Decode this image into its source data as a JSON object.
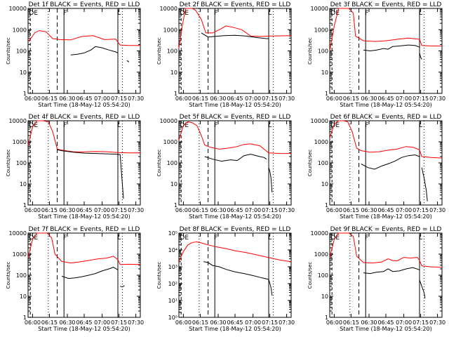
{
  "figure": {
    "background": "#ffffff",
    "axis_color": "#000000",
    "events_color": "#000000",
    "lld_color": "#ff0000"
  },
  "chart_data": [
    {
      "type": "line",
      "title": "Det 1f BLACK = Events, RED = LLD",
      "xlabel": "Start Time (18-May-12 05:54:20)",
      "ylabel": "Counts/sec",
      "y_scale": "log",
      "ylim": [
        1,
        10000
      ],
      "y_ticks": [
        1,
        10,
        100,
        1000,
        10000
      ],
      "y_tick_labels": [
        "1",
        "10",
        "100",
        "1000",
        "10000"
      ],
      "x_ticks": [
        "06:00",
        "06:15",
        "06:30",
        "06:45",
        "07:00",
        "07:15",
        "07:30"
      ],
      "markers": [
        "D",
        "E",
        "F",
        "L"
      ],
      "series": [
        {
          "key": "lld",
          "color": "#ff0000",
          "x": [
            0,
            0.03,
            0.06,
            0.1,
            0.16,
            0.22,
            0.28,
            0.38,
            0.48,
            0.58,
            0.68,
            0.78,
            0.82,
            0.9,
            1.0
          ],
          "y": [
            280,
            420,
            720,
            900,
            800,
            380,
            340,
            330,
            480,
            520,
            340,
            360,
            190,
            180,
            180
          ]
        },
        {
          "key": "events",
          "color": "#000000",
          "x": [
            0.38,
            0.44,
            0.5,
            0.56,
            0.6,
            0.66,
            0.72,
            0.78,
            0.8
          ],
          "y": [
            65,
            70,
            80,
            110,
            160,
            140,
            110,
            90,
            80
          ]
        },
        {
          "key": "events_tail",
          "color": "#000000",
          "x": [
            0.88,
            0.9
          ],
          "y": [
            35,
            30
          ]
        }
      ]
    },
    {
      "type": "line",
      "title": "Det 2f BLACK = Events, RED = LLD",
      "xlabel": "Start Time (18-May-12 05:54:20)",
      "ylabel": "Counts/sec",
      "y_scale": "log",
      "ylim": [
        1,
        10000
      ],
      "y_ticks": [
        1,
        10,
        100,
        1000,
        10000
      ],
      "y_tick_labels": [
        "1",
        "10",
        "100",
        "1000",
        "10000"
      ],
      "x_ticks": [
        "06:00",
        "06:15",
        "06:30",
        "06:45",
        "07:00",
        "07:15",
        "07:30"
      ],
      "markers": [
        "D",
        "E",
        "F",
        "L"
      ],
      "series": [
        {
          "key": "lld",
          "color": "#ff0000",
          "x": [
            0,
            0.03,
            0.06,
            0.09,
            0.12,
            0.15,
            0.2,
            0.24,
            0.3,
            0.36,
            0.42,
            0.48,
            0.56,
            0.64,
            0.72,
            0.8,
            1.0
          ],
          "y": [
            130,
            1500,
            10000,
            10000,
            10000,
            8000,
            3000,
            700,
            700,
            1000,
            1500,
            1300,
            1000,
            500,
            480,
            500,
            520
          ]
        },
        {
          "key": "events",
          "color": "#000000",
          "x": [
            0.2,
            0.26,
            0.32,
            0.4,
            0.5,
            0.6,
            0.7,
            0.78,
            0.8
          ],
          "y": [
            700,
            450,
            480,
            520,
            540,
            500,
            420,
            380,
            380
          ]
        }
      ]
    },
    {
      "type": "line",
      "title": "Det 3f BLACK = Events, RED = LLD",
      "xlabel": "Start Time (18-May-12 05:54:20)",
      "ylabel": "Counts/sec",
      "y_scale": "log",
      "ylim": [
        1,
        10000
      ],
      "y_ticks": [
        1,
        10,
        100,
        1000,
        10000
      ],
      "y_tick_labels": [
        "1",
        "10",
        "100",
        "1000",
        "10000"
      ],
      "x_ticks": [
        "06:00",
        "06:15",
        "06:30",
        "06:45",
        "07:00",
        "07:15",
        "07:30"
      ],
      "markers": [
        "D",
        "E",
        "F",
        "L"
      ],
      "series": [
        {
          "key": "lld",
          "color": "#ff0000",
          "x": [
            0,
            0.04,
            0.08,
            0.12,
            0.17,
            0.21,
            0.23,
            0.3,
            0.4,
            0.5,
            0.6,
            0.7,
            0.8,
            0.82,
            0.9,
            1.0
          ],
          "y": [
            100,
            1500,
            10000,
            10000,
            10000,
            6000,
            500,
            300,
            280,
            300,
            350,
            400,
            350,
            180,
            170,
            170
          ]
        },
        {
          "key": "events",
          "color": "#000000",
          "x": [
            0.3,
            0.36,
            0.42,
            0.48,
            0.52,
            0.56,
            0.62,
            0.7,
            0.76,
            0.8
          ],
          "y": [
            110,
            100,
            110,
            130,
            120,
            160,
            170,
            190,
            180,
            150
          ]
        },
        {
          "key": "events_tail",
          "color": "#000000",
          "x": [
            0.8,
            0.81,
            0.82
          ],
          "y": [
            80,
            50,
            40
          ]
        }
      ]
    },
    {
      "type": "line",
      "title": "Det 4f BLACK = Events, RED = LLD",
      "xlabel": "Start Time (18-May-12 05:54:20)",
      "ylabel": "Counts/sec",
      "y_scale": "log",
      "ylim": [
        1,
        10000
      ],
      "y_ticks": [
        1,
        10,
        100,
        1000,
        10000
      ],
      "y_tick_labels": [
        "1",
        "10",
        "100",
        "1000",
        "10000"
      ],
      "x_ticks": [
        "06:00",
        "06:15",
        "06:30",
        "06:45",
        "07:00",
        "07:15",
        "07:30"
      ],
      "markers": [
        "D",
        "E",
        "F",
        "L"
      ],
      "series": [
        {
          "key": "lld",
          "color": "#ff0000",
          "x": [
            0,
            0.04,
            0.08,
            0.13,
            0.18,
            0.22,
            0.26,
            0.3,
            0.4,
            0.5,
            0.6,
            0.7,
            0.8,
            0.9,
            1.0
          ],
          "y": [
            700,
            5000,
            10000,
            10000,
            9000,
            3000,
            450,
            400,
            340,
            330,
            350,
            340,
            310,
            300,
            300
          ]
        },
        {
          "key": "events",
          "color": "#000000",
          "x": [
            0.26,
            0.3,
            0.4,
            0.5,
            0.6,
            0.7,
            0.78,
            0.82,
            0.84,
            0.85
          ],
          "y": [
            420,
            380,
            320,
            290,
            280,
            270,
            260,
            250,
            10,
            2
          ]
        }
      ]
    },
    {
      "type": "line",
      "title": "Det 5f BLACK = Events, RED = LLD",
      "xlabel": "Start Time (18-May-12 05:54:20)",
      "ylabel": "Counts/sec",
      "y_scale": "log",
      "ylim": [
        1,
        10000
      ],
      "y_ticks": [
        1,
        10,
        100,
        1000,
        10000
      ],
      "y_tick_labels": [
        "1",
        "10",
        "100",
        "1000",
        "10000"
      ],
      "x_ticks": [
        "06:00",
        "06:15",
        "06:30",
        "06:45",
        "07:00",
        "07:15",
        "07:30"
      ],
      "markers": [
        "D",
        "E",
        "F",
        "L"
      ],
      "series": [
        {
          "key": "lld",
          "color": "#ff0000",
          "x": [
            0,
            0.04,
            0.08,
            0.12,
            0.16,
            0.2,
            0.23,
            0.28,
            0.36,
            0.44,
            0.52,
            0.58,
            0.64,
            0.72,
            0.8,
            0.9,
            1.0
          ],
          "y": [
            1200,
            6000,
            9000,
            8000,
            6000,
            2000,
            700,
            550,
            450,
            500,
            600,
            750,
            800,
            650,
            300,
            280,
            280
          ]
        },
        {
          "key": "events",
          "color": "#000000",
          "x": [
            0.23,
            0.3,
            0.38,
            0.46,
            0.52,
            0.58,
            0.64,
            0.72,
            0.76,
            0.78
          ],
          "y": [
            200,
            150,
            120,
            140,
            130,
            220,
            260,
            200,
            180,
            150
          ]
        },
        {
          "key": "events_tail",
          "color": "#000000",
          "x": [
            0.8,
            0.81,
            0.82,
            0.83
          ],
          "y": [
            60,
            40,
            20,
            4
          ]
        }
      ]
    },
    {
      "type": "line",
      "title": "Det 6f BLACK = Events, RED = LLD",
      "xlabel": "Start Time (18-May-12 05:54:20)",
      "ylabel": "Counts/sec",
      "y_scale": "log",
      "ylim": [
        1,
        10000
      ],
      "y_ticks": [
        1,
        10,
        100,
        1000,
        10000
      ],
      "y_tick_labels": [
        "1",
        "10",
        "100",
        "1000",
        "10000"
      ],
      "x_ticks": [
        "06:00",
        "06:15",
        "06:30",
        "06:45",
        "07:00",
        "07:15",
        "07:30"
      ],
      "markers": [
        "D",
        "E",
        "F",
        "L"
      ],
      "series": [
        {
          "key": "lld",
          "color": "#ff0000",
          "x": [
            0,
            0.04,
            0.08,
            0.12,
            0.16,
            0.2,
            0.24,
            0.28,
            0.36,
            0.44,
            0.52,
            0.6,
            0.68,
            0.74,
            0.8,
            0.82,
            0.9,
            1.0
          ],
          "y": [
            1500,
            7000,
            10000,
            10000,
            9000,
            3000,
            500,
            380,
            320,
            340,
            400,
            450,
            600,
            550,
            420,
            200,
            180,
            170
          ]
        },
        {
          "key": "events",
          "color": "#000000",
          "x": [
            0.28,
            0.34,
            0.4,
            0.46,
            0.52,
            0.58,
            0.64,
            0.7,
            0.76,
            0.8
          ],
          "y": [
            90,
            60,
            50,
            70,
            90,
            120,
            180,
            220,
            240,
            200
          ]
        },
        {
          "key": "events_tail",
          "color": "#000000",
          "x": [
            0.82,
            0.84,
            0.86,
            0.87
          ],
          "y": [
            60,
            20,
            5,
            1.5
          ]
        }
      ]
    },
    {
      "type": "line",
      "title": "Det 7f BLACK = Events, RED = LLD",
      "xlabel": "Start Time (18-May-12 05:54:20)",
      "ylabel": "Counts/sec",
      "y_scale": "log",
      "ylim": [
        1,
        10000
      ],
      "y_ticks": [
        1,
        10,
        100,
        1000,
        10000
      ],
      "y_tick_labels": [
        "1",
        "10",
        "100",
        "1000",
        "10000"
      ],
      "x_ticks": [
        "06:00",
        "06:15",
        "06:30",
        "06:45",
        "07:00",
        "07:15",
        "07:30"
      ],
      "markers": [
        "D",
        "E",
        "F",
        "L"
      ],
      "series": [
        {
          "key": "lld",
          "color": "#ff0000",
          "x": [
            0,
            0.04,
            0.08,
            0.12,
            0.17,
            0.21,
            0.24,
            0.3,
            0.38,
            0.46,
            0.54,
            0.62,
            0.7,
            0.76,
            0.8,
            0.82,
            0.9,
            1.0
          ],
          "y": [
            700,
            5000,
            10000,
            10000,
            10000,
            6000,
            1000,
            450,
            380,
            430,
            500,
            600,
            650,
            800,
            550,
            320,
            330,
            320
          ]
        },
        {
          "key": "events",
          "color": "#000000",
          "x": [
            0.3,
            0.36,
            0.42,
            0.48,
            0.54,
            0.6,
            0.66,
            0.72,
            0.76,
            0.8
          ],
          "y": [
            90,
            70,
            75,
            85,
            100,
            120,
            160,
            200,
            240,
            180
          ]
        },
        {
          "key": "events_tail",
          "color": "#000000",
          "x": [
            0.82,
            0.84,
            0.86
          ],
          "y": [
            30,
            28,
            32
          ]
        }
      ]
    },
    {
      "type": "line",
      "title": "Det 8f BLACK = Events, RED = LLD",
      "xlabel": "Start Time (18-May-12 05:54:20)",
      "ylabel": "Counts/sec",
      "y_scale": "log",
      "ylim": [
        1,
        100000
      ],
      "y_ticks": [
        1,
        10,
        100,
        1000,
        10000,
        100000
      ],
      "y_tick_labels": [
        "10⁰",
        "10¹",
        "10²",
        "10³",
        "10⁴",
        "10⁵"
      ],
      "x_ticks": [
        "06:00",
        "06:15",
        "06:30",
        "06:45",
        "07:00",
        "07:15",
        "07:30"
      ],
      "markers": [
        "D",
        "E",
        "F",
        "L"
      ],
      "series": [
        {
          "key": "lld",
          "color": "#ff0000",
          "x": [
            0,
            0.04,
            0.08,
            0.12,
            0.16,
            0.2,
            0.26,
            0.34,
            0.42,
            0.5,
            0.6,
            0.7,
            0.8,
            0.9,
            1.0
          ],
          "y": [
            2000,
            8000,
            20000,
            28000,
            30000,
            26000,
            20000,
            15000,
            12000,
            9000,
            7000,
            5000,
            3500,
            2500,
            2000
          ]
        },
        {
          "key": "events",
          "color": "#000000",
          "x": [
            0.22,
            0.26,
            0.3,
            0.36,
            0.42,
            0.5,
            0.58,
            0.66,
            0.74,
            0.8,
            0.82,
            0.83
          ],
          "y": [
            2000,
            1800,
            1200,
            1000,
            700,
            500,
            400,
            300,
            220,
            180,
            60,
            20
          ]
        }
      ]
    },
    {
      "type": "line",
      "title": "Det 9f BLACK = Events, RED = LLD",
      "xlabel": "Start Time (18-May-12 05:54:20)",
      "ylabel": "Counts/sec",
      "y_scale": "log",
      "ylim": [
        1,
        10000
      ],
      "y_ticks": [
        1,
        10,
        100,
        1000,
        10000
      ],
      "y_tick_labels": [
        "1",
        "10",
        "100",
        "1000",
        "10000"
      ],
      "x_ticks": [
        "06:00",
        "06:15",
        "06:30",
        "06:45",
        "07:00",
        "07:15",
        "07:30"
      ],
      "markers": [
        "D",
        "E",
        "F",
        "L"
      ],
      "series": [
        {
          "key": "lld",
          "color": "#ff0000",
          "x": [
            0,
            0.04,
            0.08,
            0.12,
            0.17,
            0.21,
            0.24,
            0.3,
            0.38,
            0.46,
            0.52,
            0.56,
            0.6,
            0.66,
            0.72,
            0.78,
            0.8,
            0.82,
            0.9,
            1.0
          ],
          "y": [
            700,
            5000,
            10000,
            10000,
            10000,
            7000,
            800,
            400,
            380,
            420,
            600,
            500,
            480,
            700,
            650,
            700,
            500,
            280,
            250,
            240
          ]
        },
        {
          "key": "events",
          "color": "#000000",
          "x": [
            0.3,
            0.36,
            0.42,
            0.48,
            0.52,
            0.56,
            0.62,
            0.68,
            0.74,
            0.8
          ],
          "y": [
            130,
            120,
            140,
            150,
            200,
            150,
            160,
            200,
            230,
            180
          ]
        },
        {
          "key": "events_tail",
          "color": "#000000",
          "x": [
            0.8,
            0.82,
            0.84,
            0.85
          ],
          "y": [
            60,
            30,
            15,
            8
          ]
        }
      ]
    }
  ]
}
